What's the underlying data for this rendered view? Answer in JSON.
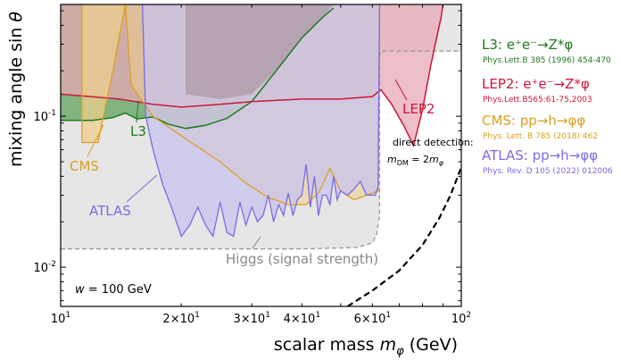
{
  "chart_data": {
    "type": "area",
    "xlabel": "scalar mass m_φ (GeV)",
    "ylabel": "mixing angle sin θ",
    "xscale": "log",
    "yscale": "log",
    "xlim": [
      10,
      100
    ],
    "ylim": [
      0.0055,
      0.55
    ],
    "x_ticks": [
      {
        "value": 10,
        "label": "10^1"
      },
      {
        "value": 20,
        "label": "2×10^1"
      },
      {
        "value": 30,
        "label": "3×10^1"
      },
      {
        "value": 40,
        "label": "4×10^1"
      },
      {
        "value": 60,
        "label": "6×10^1"
      },
      {
        "value": 100,
        "label": "10^2"
      }
    ],
    "y_ticks": [
      {
        "value": 0.01,
        "label": "10^-2"
      },
      {
        "value": 0.1,
        "label": "10^-1"
      }
    ],
    "annotations": {
      "width": "w = 100 GeV",
      "direct_detection_line1": "direct detection:",
      "direct_detection_line2": "m_DM = 2m_φ"
    },
    "series": [
      {
        "name": "Higgs (signal strength)",
        "color": "#9a9a9a",
        "fill": "#e6e6e6",
        "style": "dashed",
        "points": [
          [
            10,
            0.0132
          ],
          [
            20,
            0.0132
          ],
          [
            40,
            0.0132
          ],
          [
            55,
            0.0135
          ],
          [
            60,
            0.0145
          ],
          [
            61.5,
            0.0165
          ],
          [
            62.5,
            0.022
          ],
          [
            62.5,
            0.25
          ],
          [
            63,
            0.27
          ],
          [
            100,
            0.27
          ]
        ]
      },
      {
        "name": "L3",
        "label": "L3",
        "color": "#1e7a1e",
        "fill": "#2e8b2e",
        "legend_title": "L3: e⁺e⁻→Z*φ",
        "reference": "Phys.Lett.B 385 (1996) 454-470",
        "points": [
          [
            10,
            0.094
          ],
          [
            12,
            0.094
          ],
          [
            13.5,
            0.098
          ],
          [
            14.5,
            0.105
          ],
          [
            15.5,
            0.096
          ],
          [
            17,
            0.099
          ],
          [
            18.5,
            0.089
          ],
          [
            20.5,
            0.083
          ],
          [
            23,
            0.087
          ],
          [
            26,
            0.097
          ],
          [
            30,
            0.125
          ],
          [
            35,
            0.21
          ],
          [
            40,
            0.33
          ],
          [
            45,
            0.45
          ],
          [
            48,
            0.52
          ]
        ]
      },
      {
        "name": "LEP2",
        "label": "LEP2",
        "color": "#d0163a",
        "fill": "#e7a9b5",
        "legend_title": "LEP2: e⁺e⁻→Z*φ",
        "reference": "Phys.Lett.B565:61-75,2003",
        "points": [
          [
            10,
            0.14
          ],
          [
            14,
            0.13
          ],
          [
            17,
            0.12
          ],
          [
            20,
            0.115
          ],
          [
            25,
            0.12
          ],
          [
            30,
            0.125
          ],
          [
            40,
            0.13
          ],
          [
            50,
            0.13
          ],
          [
            60,
            0.135
          ],
          [
            63,
            0.15
          ],
          [
            67,
            0.12
          ],
          [
            72,
            0.086
          ],
          [
            76,
            0.064
          ],
          [
            80,
            0.11
          ],
          [
            84,
            0.22
          ],
          [
            87,
            0.34
          ],
          [
            89,
            0.45
          ],
          [
            90,
            0.55
          ]
        ]
      },
      {
        "name": "CMS",
        "label": "CMS",
        "color": "#e0a020",
        "fill": "#eccf8e",
        "legend_title": "CMS: pp→h→φφ",
        "reference": "Phys. Lett. B 785 (2018) 462",
        "points": [
          [
            11.3,
            0.55
          ],
          [
            11.3,
            0.067
          ],
          [
            12.4,
            0.067
          ],
          [
            13.5,
            0.2
          ],
          [
            14.5,
            0.55
          ]
        ]
      },
      {
        "name": "ATLAS",
        "label": "ATLAS",
        "color": "#7b6be6",
        "fill": "#c7c3ee",
        "legend_title": "ATLAS: pp→h→φφ",
        "reference": "Phys. Rev. D 105 (2022) 012006",
        "points": [
          [
            16,
            0.55
          ],
          [
            16.3,
            0.1
          ],
          [
            17,
            0.06
          ],
          [
            18,
            0.035
          ],
          [
            19,
            0.024
          ],
          [
            20,
            0.016
          ],
          [
            21,
            0.019
          ],
          [
            22,
            0.025
          ],
          [
            23,
            0.019
          ],
          [
            24,
            0.016
          ],
          [
            25,
            0.027
          ],
          [
            26,
            0.017
          ],
          [
            27,
            0.016
          ],
          [
            28,
            0.027
          ],
          [
            29,
            0.019
          ],
          [
            30,
            0.025
          ],
          [
            31,
            0.02
          ],
          [
            32,
            0.022
          ],
          [
            33,
            0.03
          ],
          [
            34,
            0.02
          ],
          [
            35,
            0.026
          ],
          [
            36,
            0.022
          ],
          [
            37,
            0.031
          ],
          [
            38,
            0.022
          ],
          [
            39,
            0.028
          ],
          [
            40,
            0.03
          ],
          [
            41,
            0.048
          ],
          [
            42,
            0.025
          ],
          [
            43,
            0.04
          ],
          [
            44,
            0.022
          ],
          [
            45,
            0.03
          ],
          [
            46,
            0.03
          ],
          [
            47,
            0.026
          ],
          [
            48,
            0.04
          ],
          [
            49,
            0.028
          ],
          [
            50,
            0.032
          ],
          [
            52,
            0.03
          ],
          [
            54,
            0.033
          ],
          [
            56,
            0.037
          ],
          [
            58,
            0.03
          ],
          [
            60,
            0.03
          ],
          [
            61,
            0.03
          ],
          [
            62,
            0.034
          ],
          [
            62.5,
            0.55
          ]
        ]
      },
      {
        "name": "direct detection",
        "color": "#000000",
        "style": "dashed",
        "points": [
          [
            52,
            0.0055
          ],
          [
            60,
            0.007
          ],
          [
            70,
            0.0095
          ],
          [
            80,
            0.014
          ],
          [
            88,
            0.021
          ],
          [
            94,
            0.03
          ],
          [
            98,
            0.04
          ],
          [
            100,
            0.046
          ]
        ]
      }
    ]
  }
}
